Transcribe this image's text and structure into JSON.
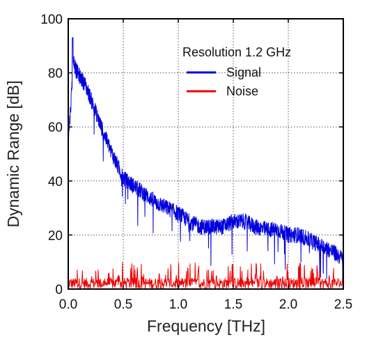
{
  "chart_data": {
    "type": "line",
    "title": "",
    "xlabel": "Frequency [THz]",
    "ylabel": "Dynamic Range [dB]",
    "xlim": [
      0,
      2.5
    ],
    "ylim": [
      0,
      100
    ],
    "xticks": [
      0.0,
      0.5,
      1.0,
      1.5,
      2.0,
      2.5
    ],
    "xtick_labels": [
      "0.0",
      "0.5",
      "1.0",
      "1.5",
      "2.0",
      "2.5"
    ],
    "yticks": [
      0,
      20,
      40,
      60,
      80,
      100
    ],
    "ytick_labels": [
      "0",
      "20",
      "40",
      "60",
      "80",
      "100"
    ],
    "grid": true,
    "legend": {
      "title": "Resolution 1.2 GHz",
      "position": "top-right"
    },
    "series": [
      {
        "name": "Signal",
        "color": "#0000dd",
        "envelope_x": [
          0.0,
          0.02,
          0.04,
          0.05,
          0.07,
          0.1,
          0.15,
          0.2,
          0.3,
          0.4,
          0.5,
          0.6,
          0.7,
          0.8,
          0.9,
          1.0,
          1.1,
          1.2,
          1.3,
          1.4,
          1.5,
          1.6,
          1.7,
          1.8,
          1.9,
          2.0,
          2.1,
          2.2,
          2.3,
          2.4,
          2.5
        ],
        "envelope_y": [
          55,
          66,
          80,
          85,
          81,
          79,
          76,
          71,
          60,
          50,
          41,
          38,
          35,
          32,
          30,
          28,
          25,
          23,
          23,
          23,
          25,
          25,
          23,
          22,
          22,
          20,
          20,
          18,
          16,
          14,
          11
        ],
        "peak": [
          0.04,
          93
        ],
        "noise_amplitude": 3
      },
      {
        "name": "Noise",
        "color": "#ee0000",
        "level_min": 0,
        "level_max": 10,
        "typical_level": 3
      }
    ]
  }
}
